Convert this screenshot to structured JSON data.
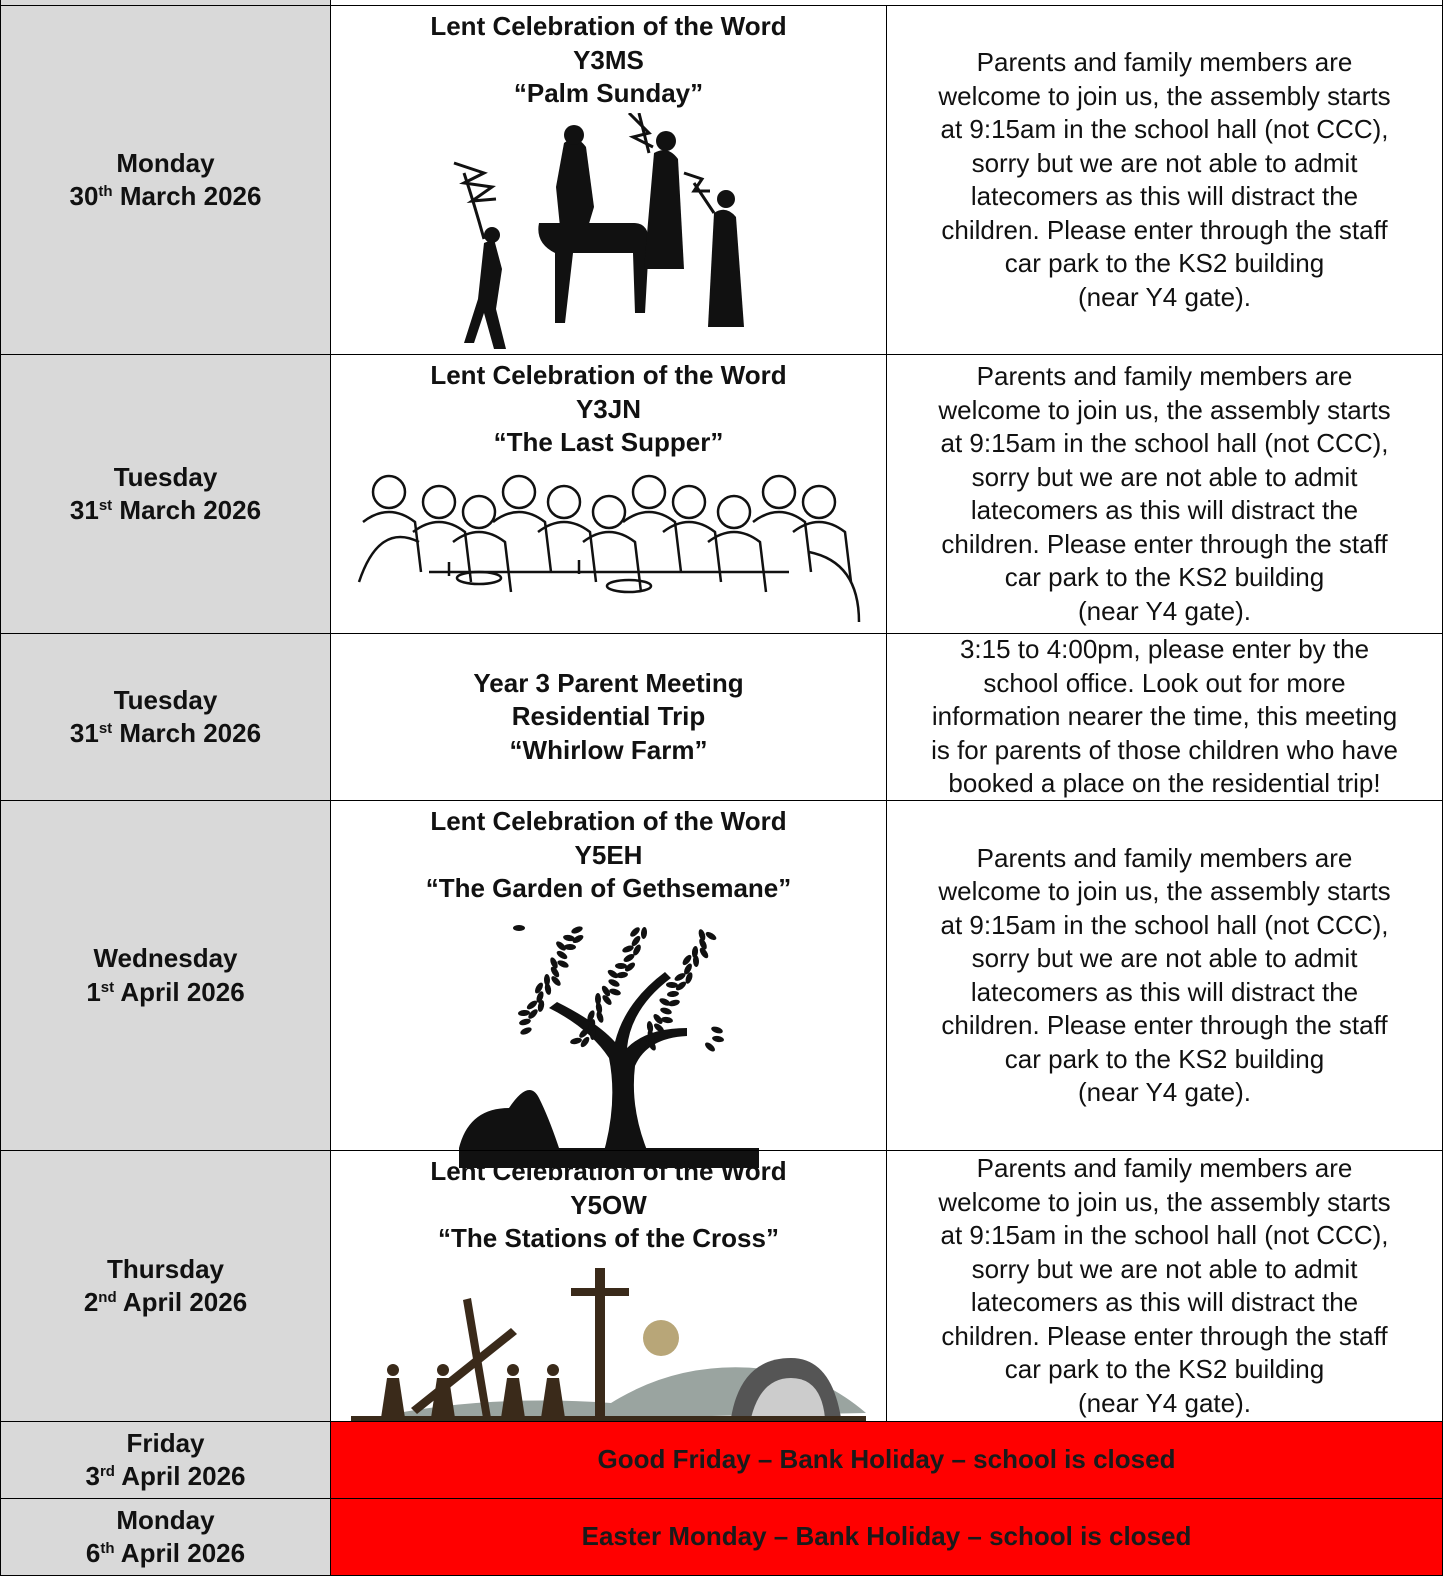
{
  "rows": [
    {
      "day": "Monday",
      "date": {
        "num": "30",
        "suffix": "th",
        "rest": "March 2026"
      },
      "event": [
        "Lent Celebration of the Word",
        "Y3MS",
        "“Palm Sunday”"
      ],
      "details": [
        "Parents and family members are",
        "welcome to join us, the assembly starts",
        "at 9:15am in the school hall (not CCC),",
        "sorry but we are not able to admit",
        "latecomers as this will distract the",
        "children. Please enter through the staff",
        "car park to the KS2 building",
        "(near Y4 gate)."
      ]
    },
    {
      "day": "Tuesday",
      "date": {
        "num": "31",
        "suffix": "st",
        "rest": "March 2026"
      },
      "event": [
        "Lent Celebration of the Word",
        "Y3JN",
        "“The Last Supper”"
      ],
      "details": [
        "Parents and family members are",
        "welcome to join us, the assembly starts",
        "at 9:15am in the school hall (not CCC),",
        "sorry but we are not able to admit",
        "latecomers as this will distract the",
        "children. Please enter through the staff",
        "car park to the KS2 building",
        "(near Y4 gate)."
      ]
    },
    {
      "day": "Tuesday",
      "date": {
        "num": "31",
        "suffix": "st",
        "rest": "March 2026"
      },
      "event": [
        "Year 3 Parent Meeting",
        "Residential Trip",
        "“Whirlow Farm”"
      ],
      "details": [
        "3:15 to 4:00pm, please enter by the",
        "school office. Look out for more",
        "information nearer the time, this meeting",
        "is for parents of those children who have",
        "booked a place on the residential trip!"
      ]
    },
    {
      "day": "Wednesday",
      "date": {
        "num": "1",
        "suffix": "st",
        "rest": "April 2026"
      },
      "event": [
        "Lent Celebration of the Word",
        "Y5EH",
        "“The Garden of Gethsemane”"
      ],
      "details": [
        "Parents and family members are",
        "welcome to join us, the assembly starts",
        "at 9:15am in the school hall (not CCC),",
        "sorry but we are not able to admit",
        "latecomers as this will distract the",
        "children. Please enter through the staff",
        "car park to the KS2 building",
        "(near Y4 gate)."
      ]
    },
    {
      "day": "Thursday",
      "date": {
        "num": "2",
        "suffix": "nd",
        "rest": "April 2026"
      },
      "event": [
        "Lent Celebration of the Word",
        "Y5OW",
        "“The Stations of the Cross”"
      ],
      "details": [
        "Parents and family members are",
        "welcome to join us, the assembly starts",
        "at 9:15am in the school hall (not CCC),",
        "sorry but we are not able to admit",
        "latecomers as this will distract the",
        "children. Please enter through the staff",
        "car park to the KS2 building",
        "(near Y4 gate)."
      ]
    },
    {
      "day": "Friday",
      "date": {
        "num": "3",
        "suffix": "rd",
        "rest": "April 2026"
      },
      "event": "Good Friday – Bank Holiday – school is closed"
    },
    {
      "day": "Monday",
      "date": {
        "num": "6",
        "suffix": "th",
        "rest": "April 2026"
      },
      "event": "Easter Monday – Bank Holiday – school is closed"
    }
  ]
}
